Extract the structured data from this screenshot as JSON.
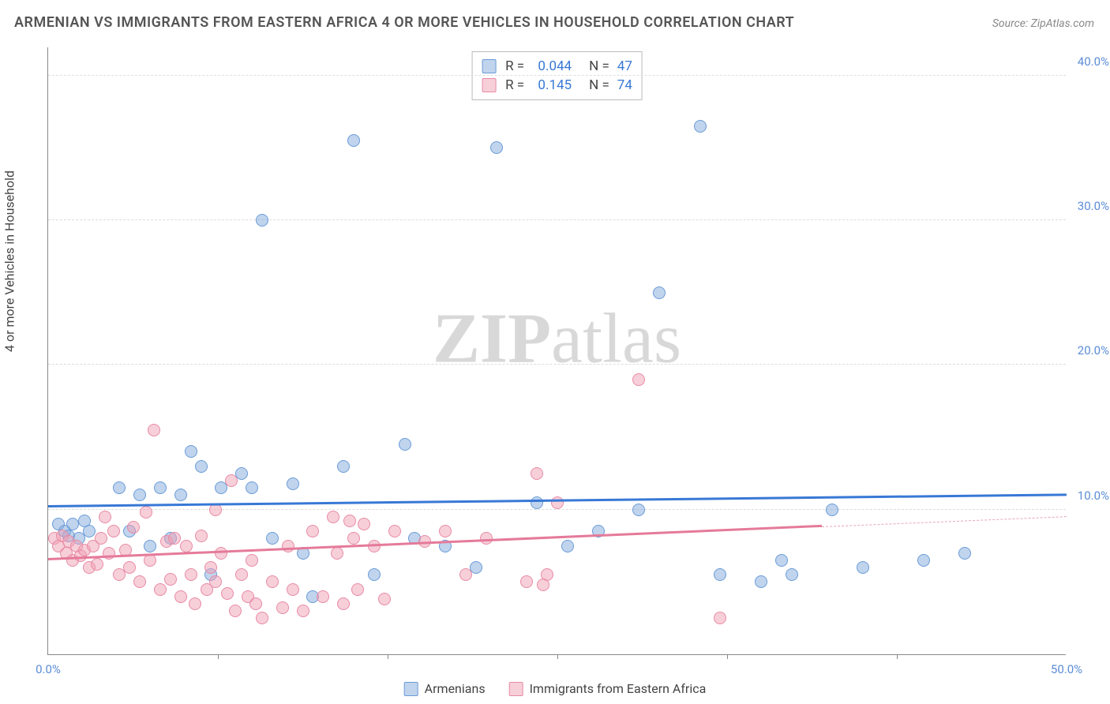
{
  "title": "ARMENIAN VS IMMIGRANTS FROM EASTERN AFRICA 4 OR MORE VEHICLES IN HOUSEHOLD CORRELATION CHART",
  "source": "Source: ZipAtlas.com",
  "y_axis_label": "4 or more Vehicles in Household",
  "watermark_bold": "ZIP",
  "watermark_rest": "atlas",
  "chart": {
    "type": "scatter",
    "xlim": [
      0,
      50
    ],
    "ylim": [
      0,
      42
    ],
    "x_ticks": [
      0,
      50
    ],
    "x_tick_labels": [
      "0.0%",
      "50.0%"
    ],
    "x_minor_ticks": [
      8.33,
      16.67,
      25,
      33.33,
      41.67
    ],
    "y_ticks": [
      10,
      20,
      30,
      40
    ],
    "y_tick_labels": [
      "10.0%",
      "20.0%",
      "30.0%",
      "40.0%"
    ],
    "background_color": "#ffffff",
    "grid_color": "#dddddd",
    "axis_color": "#888888",
    "series": [
      {
        "name": "Armenians",
        "color_fill": "rgba(130,170,220,0.5)",
        "color_stroke": "#6a9bd8",
        "trend_color": "#3878d6",
        "R": "0.044",
        "N": "47",
        "trend": {
          "x1": 0,
          "y1": 10.2,
          "x2": 50,
          "y2": 11.0
        },
        "points": [
          [
            0.5,
            9.0
          ],
          [
            0.8,
            8.5
          ],
          [
            1.0,
            8.2
          ],
          [
            1.2,
            9.0
          ],
          [
            1.5,
            8.0
          ],
          [
            1.8,
            9.2
          ],
          [
            2.0,
            8.5
          ],
          [
            3.5,
            11.5
          ],
          [
            4.0,
            8.5
          ],
          [
            4.5,
            11.0
          ],
          [
            5.0,
            7.5
          ],
          [
            5.5,
            11.5
          ],
          [
            6.0,
            8.0
          ],
          [
            6.5,
            11.0
          ],
          [
            7.0,
            14.0
          ],
          [
            7.5,
            13.0
          ],
          [
            8.0,
            5.5
          ],
          [
            8.5,
            11.5
          ],
          [
            9.5,
            12.5
          ],
          [
            10.0,
            11.5
          ],
          [
            10.5,
            30.0
          ],
          [
            11.0,
            8.0
          ],
          [
            12.0,
            11.8
          ],
          [
            12.5,
            7.0
          ],
          [
            13.0,
            4.0
          ],
          [
            14.5,
            13.0
          ],
          [
            15.0,
            35.5
          ],
          [
            16.0,
            5.5
          ],
          [
            17.5,
            14.5
          ],
          [
            18.0,
            8.0
          ],
          [
            19.5,
            7.5
          ],
          [
            21.0,
            6.0
          ],
          [
            22.0,
            35.0
          ],
          [
            24.0,
            10.5
          ],
          [
            25.5,
            7.5
          ],
          [
            27.0,
            8.5
          ],
          [
            29.0,
            10.0
          ],
          [
            30.0,
            25.0
          ],
          [
            32.0,
            36.5
          ],
          [
            33.0,
            5.5
          ],
          [
            35.0,
            5.0
          ],
          [
            36.0,
            6.5
          ],
          [
            36.5,
            5.5
          ],
          [
            38.5,
            10.0
          ],
          [
            40.0,
            6.0
          ],
          [
            43.0,
            6.5
          ],
          [
            45.0,
            7.0
          ]
        ]
      },
      {
        "name": "Immigrants from Eastern Africa",
        "color_fill": "rgba(240,160,180,0.5)",
        "color_stroke": "#e88aa5",
        "trend_color": "#e57a9a",
        "R": "0.145",
        "N": "74",
        "trend": {
          "x1": 0,
          "y1": 6.5,
          "x2": 38,
          "y2": 8.8
        },
        "trend_extrapolate": {
          "x1": 38,
          "y1": 8.8,
          "x2": 50,
          "y2": 9.5
        },
        "points": [
          [
            0.3,
            8.0
          ],
          [
            0.5,
            7.5
          ],
          [
            0.7,
            8.2
          ],
          [
            0.9,
            7.0
          ],
          [
            1.0,
            7.8
          ],
          [
            1.2,
            6.5
          ],
          [
            1.4,
            7.5
          ],
          [
            1.6,
            6.8
          ],
          [
            1.8,
            7.2
          ],
          [
            2.0,
            6.0
          ],
          [
            2.2,
            7.5
          ],
          [
            2.4,
            6.2
          ],
          [
            2.6,
            8.0
          ],
          [
            2.8,
            9.5
          ],
          [
            3.0,
            7.0
          ],
          [
            3.2,
            8.5
          ],
          [
            3.5,
            5.5
          ],
          [
            3.8,
            7.2
          ],
          [
            4.0,
            6.0
          ],
          [
            4.2,
            8.8
          ],
          [
            4.5,
            5.0
          ],
          [
            4.8,
            9.8
          ],
          [
            5.0,
            6.5
          ],
          [
            5.2,
            15.5
          ],
          [
            5.5,
            4.5
          ],
          [
            5.8,
            7.8
          ],
          [
            6.0,
            5.2
          ],
          [
            6.2,
            8.0
          ],
          [
            6.5,
            4.0
          ],
          [
            6.8,
            7.5
          ],
          [
            7.0,
            5.5
          ],
          [
            7.2,
            3.5
          ],
          [
            7.5,
            8.2
          ],
          [
            7.8,
            4.5
          ],
          [
            8.0,
            6.0
          ],
          [
            8.2,
            5.0
          ],
          [
            8.5,
            7.0
          ],
          [
            8.8,
            4.2
          ],
          [
            9.0,
            12.0
          ],
          [
            9.2,
            3.0
          ],
          [
            9.5,
            5.5
          ],
          [
            9.8,
            4.0
          ],
          [
            10.0,
            6.5
          ],
          [
            10.2,
            3.5
          ],
          [
            10.5,
            2.5
          ],
          [
            11.0,
            5.0
          ],
          [
            11.5,
            3.2
          ],
          [
            12.0,
            4.5
          ],
          [
            12.5,
            3.0
          ],
          [
            13.0,
            8.5
          ],
          [
            13.5,
            4.0
          ],
          [
            14.0,
            9.5
          ],
          [
            14.2,
            7.0
          ],
          [
            14.5,
            3.5
          ],
          [
            15.0,
            8.0
          ],
          [
            15.2,
            4.5
          ],
          [
            15.5,
            9.0
          ],
          [
            16.0,
            7.5
          ],
          [
            16.5,
            3.8
          ],
          [
            17.0,
            8.5
          ],
          [
            18.5,
            7.8
          ],
          [
            19.5,
            8.5
          ],
          [
            20.5,
            5.5
          ],
          [
            21.5,
            8.0
          ],
          [
            23.5,
            5.0
          ],
          [
            24.0,
            12.5
          ],
          [
            24.5,
            5.5
          ],
          [
            25.0,
            10.5
          ],
          [
            29.0,
            19.0
          ],
          [
            33.0,
            2.5
          ],
          [
            24.3,
            4.8
          ],
          [
            14.8,
            9.2
          ],
          [
            8.2,
            10.0
          ],
          [
            11.8,
            7.5
          ]
        ]
      }
    ]
  },
  "legend_top": {
    "rows": [
      {
        "swatch": "blue",
        "r_label": "R =",
        "r_val": "0.044",
        "n_label": "N =",
        "n_val": "47"
      },
      {
        "swatch": "pink",
        "r_label": "R =",
        "r_val": "0.145",
        "n_label": "N =",
        "n_val": "74"
      }
    ]
  },
  "legend_bottom": {
    "items": [
      {
        "swatch": "blue",
        "label": "Armenians"
      },
      {
        "swatch": "pink",
        "label": "Immigrants from Eastern Africa"
      }
    ]
  }
}
